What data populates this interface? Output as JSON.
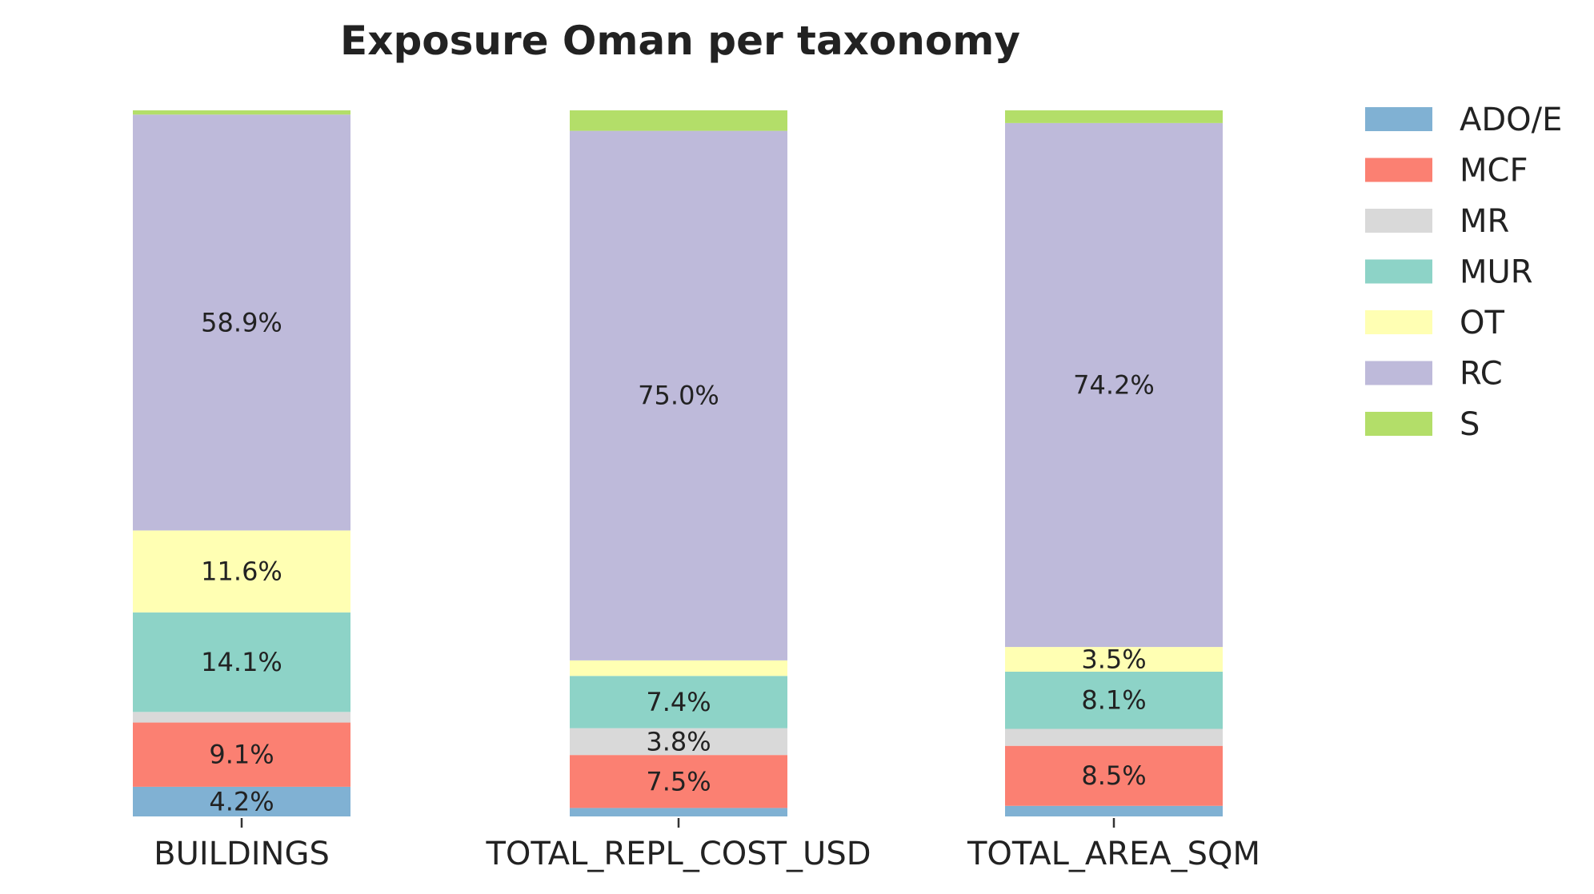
{
  "chart_data": {
    "type": "bar",
    "stacked": true,
    "normalized": true,
    "title": "Exposure Oman per taxonomy",
    "xlabel": "",
    "ylabel": "",
    "ylim": [
      0,
      100
    ],
    "grid": false,
    "legend_position": "right",
    "categories": [
      "BUILDINGS",
      "TOTAL_REPL_COST_USD",
      "TOTAL_AREA_SQM"
    ],
    "series": [
      {
        "name": "ADO/E",
        "color": "#80b1d3",
        "values": [
          4.2,
          1.2,
          1.5
        ],
        "labels": [
          "4.2%",
          "",
          ""
        ]
      },
      {
        "name": "MCF",
        "color": "#fb8072",
        "values": [
          9.1,
          7.5,
          8.5
        ],
        "labels": [
          "9.1%",
          "7.5%",
          "8.5%"
        ]
      },
      {
        "name": "MR",
        "color": "#d9d9d9",
        "values": [
          1.5,
          3.8,
          2.4
        ],
        "labels": [
          "",
          "3.8%",
          ""
        ]
      },
      {
        "name": "MUR",
        "color": "#8dd3c7",
        "values": [
          14.1,
          7.4,
          8.1
        ],
        "labels": [
          "14.1%",
          "7.4%",
          "8.1%"
        ]
      },
      {
        "name": "OT",
        "color": "#ffffb3",
        "values": [
          11.6,
          2.2,
          3.5
        ],
        "labels": [
          "11.6%",
          "",
          "3.5%"
        ]
      },
      {
        "name": "RC",
        "color": "#bebada",
        "values": [
          58.9,
          75.0,
          74.2
        ],
        "labels": [
          "58.9%",
          "75.0%",
          "74.2%"
        ]
      },
      {
        "name": "S",
        "color": "#b3de69",
        "values": [
          0.6,
          2.9,
          1.8
        ],
        "labels": [
          "",
          "",
          ""
        ]
      }
    ]
  }
}
